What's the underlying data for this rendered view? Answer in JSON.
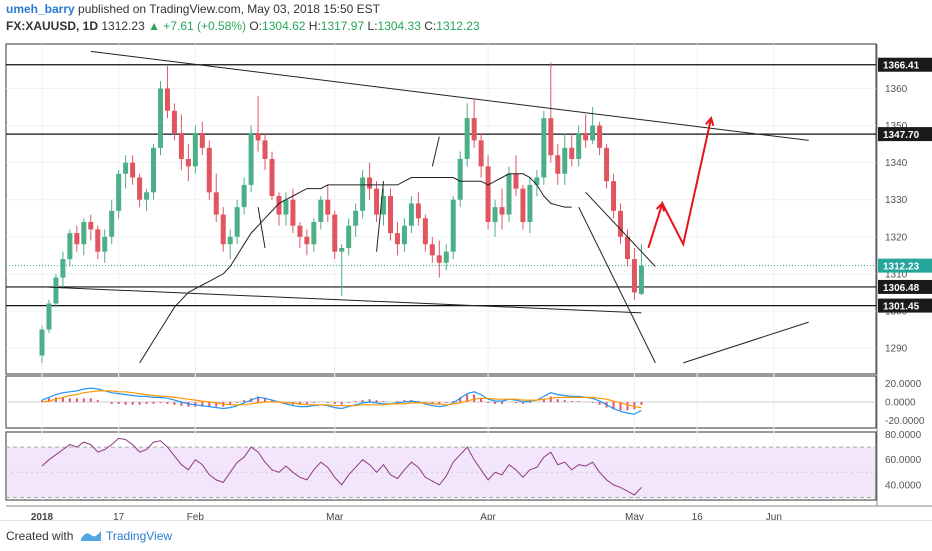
{
  "header": {
    "author": "umeh_barry",
    "published": " published on TradingView.com, May 03, 2018 15:50 EST",
    "symbol": "FX:XAUUSD, 1D",
    "last": "1312.23",
    "change": "▲ +7.61 (+0.58%)",
    "open_label": "O:",
    "open": "1304.62",
    "high_label": "H:",
    "high": "1317.97",
    "low_label": "L:",
    "low": "1304.33",
    "close_label": "C:",
    "close": "1312.23"
  },
  "footer": {
    "created_with": "Created with",
    "brand": "TradingView"
  },
  "colors": {
    "up": "#4caf87",
    "down": "#e05560",
    "ma": "#222222",
    "price_line": "#26a69a",
    "macd_line": "#2196f3",
    "signal_line": "#ff9800",
    "hist_pos": "#e05573",
    "hist_neg": "#e05573",
    "rsi_line": "#8e3a80",
    "rsi_band": "#f3e6fb",
    "arrow": "#e8121b",
    "trendline": "#222222"
  },
  "chart_data": [
    {
      "type": "candlestick",
      "title": "",
      "ylim": [
        1283,
        1372
      ],
      "y_ticks": [
        1290,
        1300,
        1310,
        1320,
        1330,
        1340,
        1350,
        1360
      ],
      "x_tick_labels": [
        {
          "label": "2018",
          "index": 0
        },
        {
          "label": "17",
          "index": 11
        },
        {
          "label": "Feb",
          "index": 22
        },
        {
          "label": "Mar",
          "index": 42
        },
        {
          "label": "Apr",
          "index": 64
        },
        {
          "label": "May",
          "index": 85
        },
        {
          "label": "16",
          "index": 94
        },
        {
          "label": "Jun",
          "index": 105
        }
      ],
      "price_labels": [
        {
          "text": "1366.41",
          "value": 1366.41,
          "style": "black"
        },
        {
          "text": "1347.70",
          "value": 1347.7,
          "style": "black"
        },
        {
          "text": "1312.23",
          "value": 1312.23,
          "style": "green"
        },
        {
          "text": "1306.48",
          "value": 1306.48,
          "style": "black"
        },
        {
          "text": "1301.45",
          "value": 1301.45,
          "style": "black"
        }
      ],
      "horizontal_levels": [
        1366.41,
        1347.7,
        1306.48,
        1301.45
      ],
      "current_price": 1312.23,
      "candles": [
        [
          1288,
          1296,
          1286,
          1295
        ],
        [
          1295,
          1303,
          1294,
          1302
        ],
        [
          1302,
          1310,
          1301,
          1309
        ],
        [
          1309,
          1316,
          1306,
          1314
        ],
        [
          1314,
          1322,
          1312,
          1321
        ],
        [
          1321,
          1323,
          1316,
          1318
        ],
        [
          1318,
          1325,
          1315,
          1324
        ],
        [
          1324,
          1326,
          1319,
          1322
        ],
        [
          1322,
          1323,
          1314,
          1316
        ],
        [
          1316,
          1322,
          1313,
          1320
        ],
        [
          1320,
          1330,
          1318,
          1327
        ],
        [
          1327,
          1338,
          1325,
          1337
        ],
        [
          1337,
          1342,
          1333,
          1340
        ],
        [
          1340,
          1342,
          1334,
          1336
        ],
        [
          1336,
          1337,
          1328,
          1330
        ],
        [
          1330,
          1333,
          1327,
          1332
        ],
        [
          1332,
          1345,
          1330,
          1344
        ],
        [
          1344,
          1362,
          1342,
          1360
        ],
        [
          1360,
          1366,
          1352,
          1354
        ],
        [
          1354,
          1356,
          1346,
          1348
        ],
        [
          1348,
          1353,
          1338,
          1341
        ],
        [
          1341,
          1345,
          1335,
          1339
        ],
        [
          1339,
          1350,
          1337,
          1348
        ],
        [
          1348,
          1351,
          1342,
          1344
        ],
        [
          1344,
          1346,
          1330,
          1332
        ],
        [
          1332,
          1337,
          1324,
          1326
        ],
        [
          1326,
          1328,
          1316,
          1318
        ],
        [
          1318,
          1322,
          1314,
          1320
        ],
        [
          1320,
          1330,
          1318,
          1328
        ],
        [
          1328,
          1336,
          1326,
          1334
        ],
        [
          1334,
          1350,
          1332,
          1348
        ],
        [
          1348,
          1358,
          1343,
          1346
        ],
        [
          1346,
          1348,
          1338,
          1341
        ],
        [
          1341,
          1343,
          1330,
          1331
        ],
        [
          1331,
          1332,
          1323,
          1326
        ],
        [
          1326,
          1332,
          1323,
          1330
        ],
        [
          1330,
          1333,
          1321,
          1323
        ],
        [
          1323,
          1324,
          1317,
          1320
        ],
        [
          1320,
          1322,
          1315,
          1318
        ],
        [
          1318,
          1325,
          1316,
          1324
        ],
        [
          1324,
          1331,
          1322,
          1330
        ],
        [
          1330,
          1334,
          1324,
          1326
        ],
        [
          1326,
          1327,
          1314,
          1316
        ],
        [
          1316,
          1318,
          1304,
          1317
        ],
        [
          1317,
          1325,
          1315,
          1323
        ],
        [
          1323,
          1329,
          1320,
          1327
        ],
        [
          1327,
          1338,
          1325,
          1336
        ],
        [
          1336,
          1340,
          1330,
          1333
        ],
        [
          1333,
          1335,
          1324,
          1326
        ],
        [
          1326,
          1333,
          1323,
          1331
        ],
        [
          1331,
          1333,
          1319,
          1321
        ],
        [
          1321,
          1324,
          1315,
          1318
        ],
        [
          1318,
          1325,
          1316,
          1323
        ],
        [
          1323,
          1331,
          1321,
          1329
        ],
        [
          1329,
          1332,
          1323,
          1325
        ],
        [
          1325,
          1326,
          1316,
          1318
        ],
        [
          1318,
          1320,
          1313,
          1315
        ],
        [
          1315,
          1319,
          1309,
          1313
        ],
        [
          1313,
          1318,
          1311,
          1316
        ],
        [
          1316,
          1331,
          1314,
          1330
        ],
        [
          1330,
          1343,
          1328,
          1341
        ],
        [
          1341,
          1356,
          1339,
          1352
        ],
        [
          1352,
          1357,
          1344,
          1346
        ],
        [
          1346,
          1348,
          1336,
          1339
        ],
        [
          1339,
          1342,
          1322,
          1324
        ],
        [
          1324,
          1330,
          1320,
          1328
        ],
        [
          1328,
          1333,
          1322,
          1326
        ],
        [
          1326,
          1339,
          1324,
          1337
        ],
        [
          1337,
          1342,
          1331,
          1333
        ],
        [
          1333,
          1334,
          1322,
          1324
        ],
        [
          1324,
          1336,
          1321,
          1334
        ],
        [
          1334,
          1338,
          1331,
          1336
        ],
        [
          1336,
          1354,
          1334,
          1352
        ],
        [
          1352,
          1367,
          1340,
          1342
        ],
        [
          1342,
          1345,
          1334,
          1337
        ],
        [
          1337,
          1348,
          1334,
          1344
        ],
        [
          1344,
          1348,
          1339,
          1341
        ],
        [
          1341,
          1350,
          1339,
          1348
        ],
        [
          1348,
          1353,
          1344,
          1346
        ],
        [
          1346,
          1355,
          1345,
          1350
        ],
        [
          1350,
          1351,
          1342,
          1344
        ],
        [
          1344,
          1345,
          1333,
          1335
        ],
        [
          1335,
          1337,
          1325,
          1327
        ],
        [
          1327,
          1329,
          1318,
          1320
        ],
        [
          1320,
          1322,
          1312,
          1314
        ],
        [
          1314,
          1317,
          1303,
          1305
        ],
        [
          1304.6,
          1318,
          1304.3,
          1312.2
        ]
      ],
      "moving_average": {
        "start_index": 14,
        "values": [
          1286,
          1289,
          1292,
          1295,
          1298,
          1301,
          1303,
          1305,
          1306,
          1307,
          1308,
          1309,
          1310,
          1312,
          1315,
          1318,
          1321,
          1323,
          1325,
          1327,
          1329,
          1330,
          1331,
          1332,
          1333,
          1333,
          1333,
          1334,
          1334,
          1334,
          1334,
          1334,
          1334,
          1334,
          1334,
          1334,
          1334,
          1334,
          1335,
          1336,
          1336,
          1336,
          1336,
          1336,
          1336,
          1336,
          1335,
          1335,
          1335,
          1335,
          1334,
          1335,
          1336,
          1337,
          1337,
          1337,
          1336,
          1334,
          1331,
          1329,
          1328.5,
          1328,
          1328
        ]
      },
      "trendlines": [
        {
          "from": [
            7,
            1370
          ],
          "to": [
            110,
            1346
          ]
        },
        {
          "from": [
            0,
            1306.5
          ],
          "to": [
            86,
            1299.5
          ]
        },
        {
          "from": [
            78,
            1332
          ],
          "to": [
            88,
            1312
          ]
        },
        {
          "from": [
            77,
            1328
          ],
          "to": [
            88,
            1286
          ]
        },
        {
          "from": [
            92,
            1286
          ],
          "to": [
            110,
            1297
          ]
        },
        {
          "from": [
            31,
            1328
          ],
          "to": [
            32,
            1317
          ]
        },
        {
          "from": [
            49,
            1335
          ],
          "to": [
            48,
            1316
          ]
        },
        {
          "from": [
            57,
            1347
          ],
          "to": [
            56,
            1339
          ]
        }
      ],
      "projection_arrow": [
        [
          87,
          1317
        ],
        [
          89,
          1329
        ],
        [
          92,
          1318
        ],
        [
          96,
          1352
        ]
      ]
    },
    {
      "type": "line",
      "title": "",
      "ylim": [
        -28,
        28
      ],
      "y_ticks": [
        20,
        0,
        -20
      ],
      "y_tick_labels": [
        "20.0000",
        "0.0000",
        "-20.0000"
      ],
      "series": [
        {
          "role": "macd",
          "values": [
            2,
            5,
            8,
            10,
            11,
            12,
            14,
            15,
            14,
            12,
            10,
            9,
            8,
            7,
            6,
            6,
            5,
            5,
            4,
            2,
            0,
            -2,
            -3,
            -4,
            -5,
            -6,
            -7,
            -6,
            -4,
            -1,
            2,
            5,
            4,
            2,
            0,
            -2,
            -4,
            -5,
            -5,
            -4,
            -3,
            -4,
            -6,
            -7,
            -5,
            -3,
            -1,
            0,
            -1,
            -2,
            -2,
            -1,
            0,
            1,
            0,
            -2,
            -4,
            -5,
            -4,
            -1,
            4,
            9,
            11,
            8,
            3,
            1,
            1,
            3,
            2,
            0,
            1,
            2,
            6,
            10,
            8,
            7,
            6,
            6,
            5,
            4,
            1,
            -3,
            -7,
            -10,
            -12,
            -13,
            -9
          ]
        },
        {
          "role": "signal",
          "values": [
            0,
            1,
            3,
            5,
            7,
            8,
            10,
            11,
            12,
            12,
            12,
            11,
            11,
            10,
            9,
            8,
            7,
            6,
            6,
            5,
            4,
            3,
            2,
            1,
            0,
            -1,
            -2,
            -3,
            -3,
            -3,
            -2,
            -1,
            0,
            0,
            0,
            -1,
            -1,
            -2,
            -3,
            -3,
            -3,
            -3,
            -4,
            -4,
            -4,
            -4,
            -3,
            -3,
            -3,
            -3,
            -2,
            -2,
            -2,
            -1,
            -1,
            -1,
            -2,
            -2,
            -3,
            -2,
            -1,
            1,
            3,
            4,
            4,
            3,
            3,
            3,
            3,
            2,
            2,
            2,
            3,
            4,
            5,
            5,
            5,
            5,
            5,
            5,
            4,
            3,
            1,
            -1,
            -3,
            -5,
            -6
          ]
        }
      ]
    },
    {
      "type": "line",
      "title": "",
      "ylim": [
        28,
        82
      ],
      "y_ticks": [
        80,
        60,
        40
      ],
      "y_tick_labels": [
        "80.0000",
        "60.0000",
        "40.0000"
      ],
      "band": [
        30,
        70
      ],
      "midline": 50,
      "series": [
        {
          "role": "rsi",
          "values": [
            55,
            60,
            64,
            68,
            72,
            70,
            74,
            72,
            66,
            68,
            72,
            77,
            76,
            72,
            66,
            68,
            74,
            75,
            70,
            63,
            56,
            52,
            60,
            56,
            48,
            44,
            42,
            50,
            58,
            62,
            70,
            66,
            58,
            52,
            50,
            55,
            50,
            46,
            44,
            52,
            58,
            54,
            46,
            40,
            48,
            54,
            60,
            56,
            50,
            56,
            48,
            45,
            52,
            58,
            54,
            46,
            43,
            40,
            47,
            58,
            64,
            70,
            60,
            52,
            44,
            50,
            48,
            56,
            52,
            46,
            52,
            54,
            62,
            66,
            56,
            58,
            52,
            56,
            55,
            58,
            50,
            44,
            40,
            38,
            35,
            32,
            38
          ]
        }
      ]
    }
  ]
}
